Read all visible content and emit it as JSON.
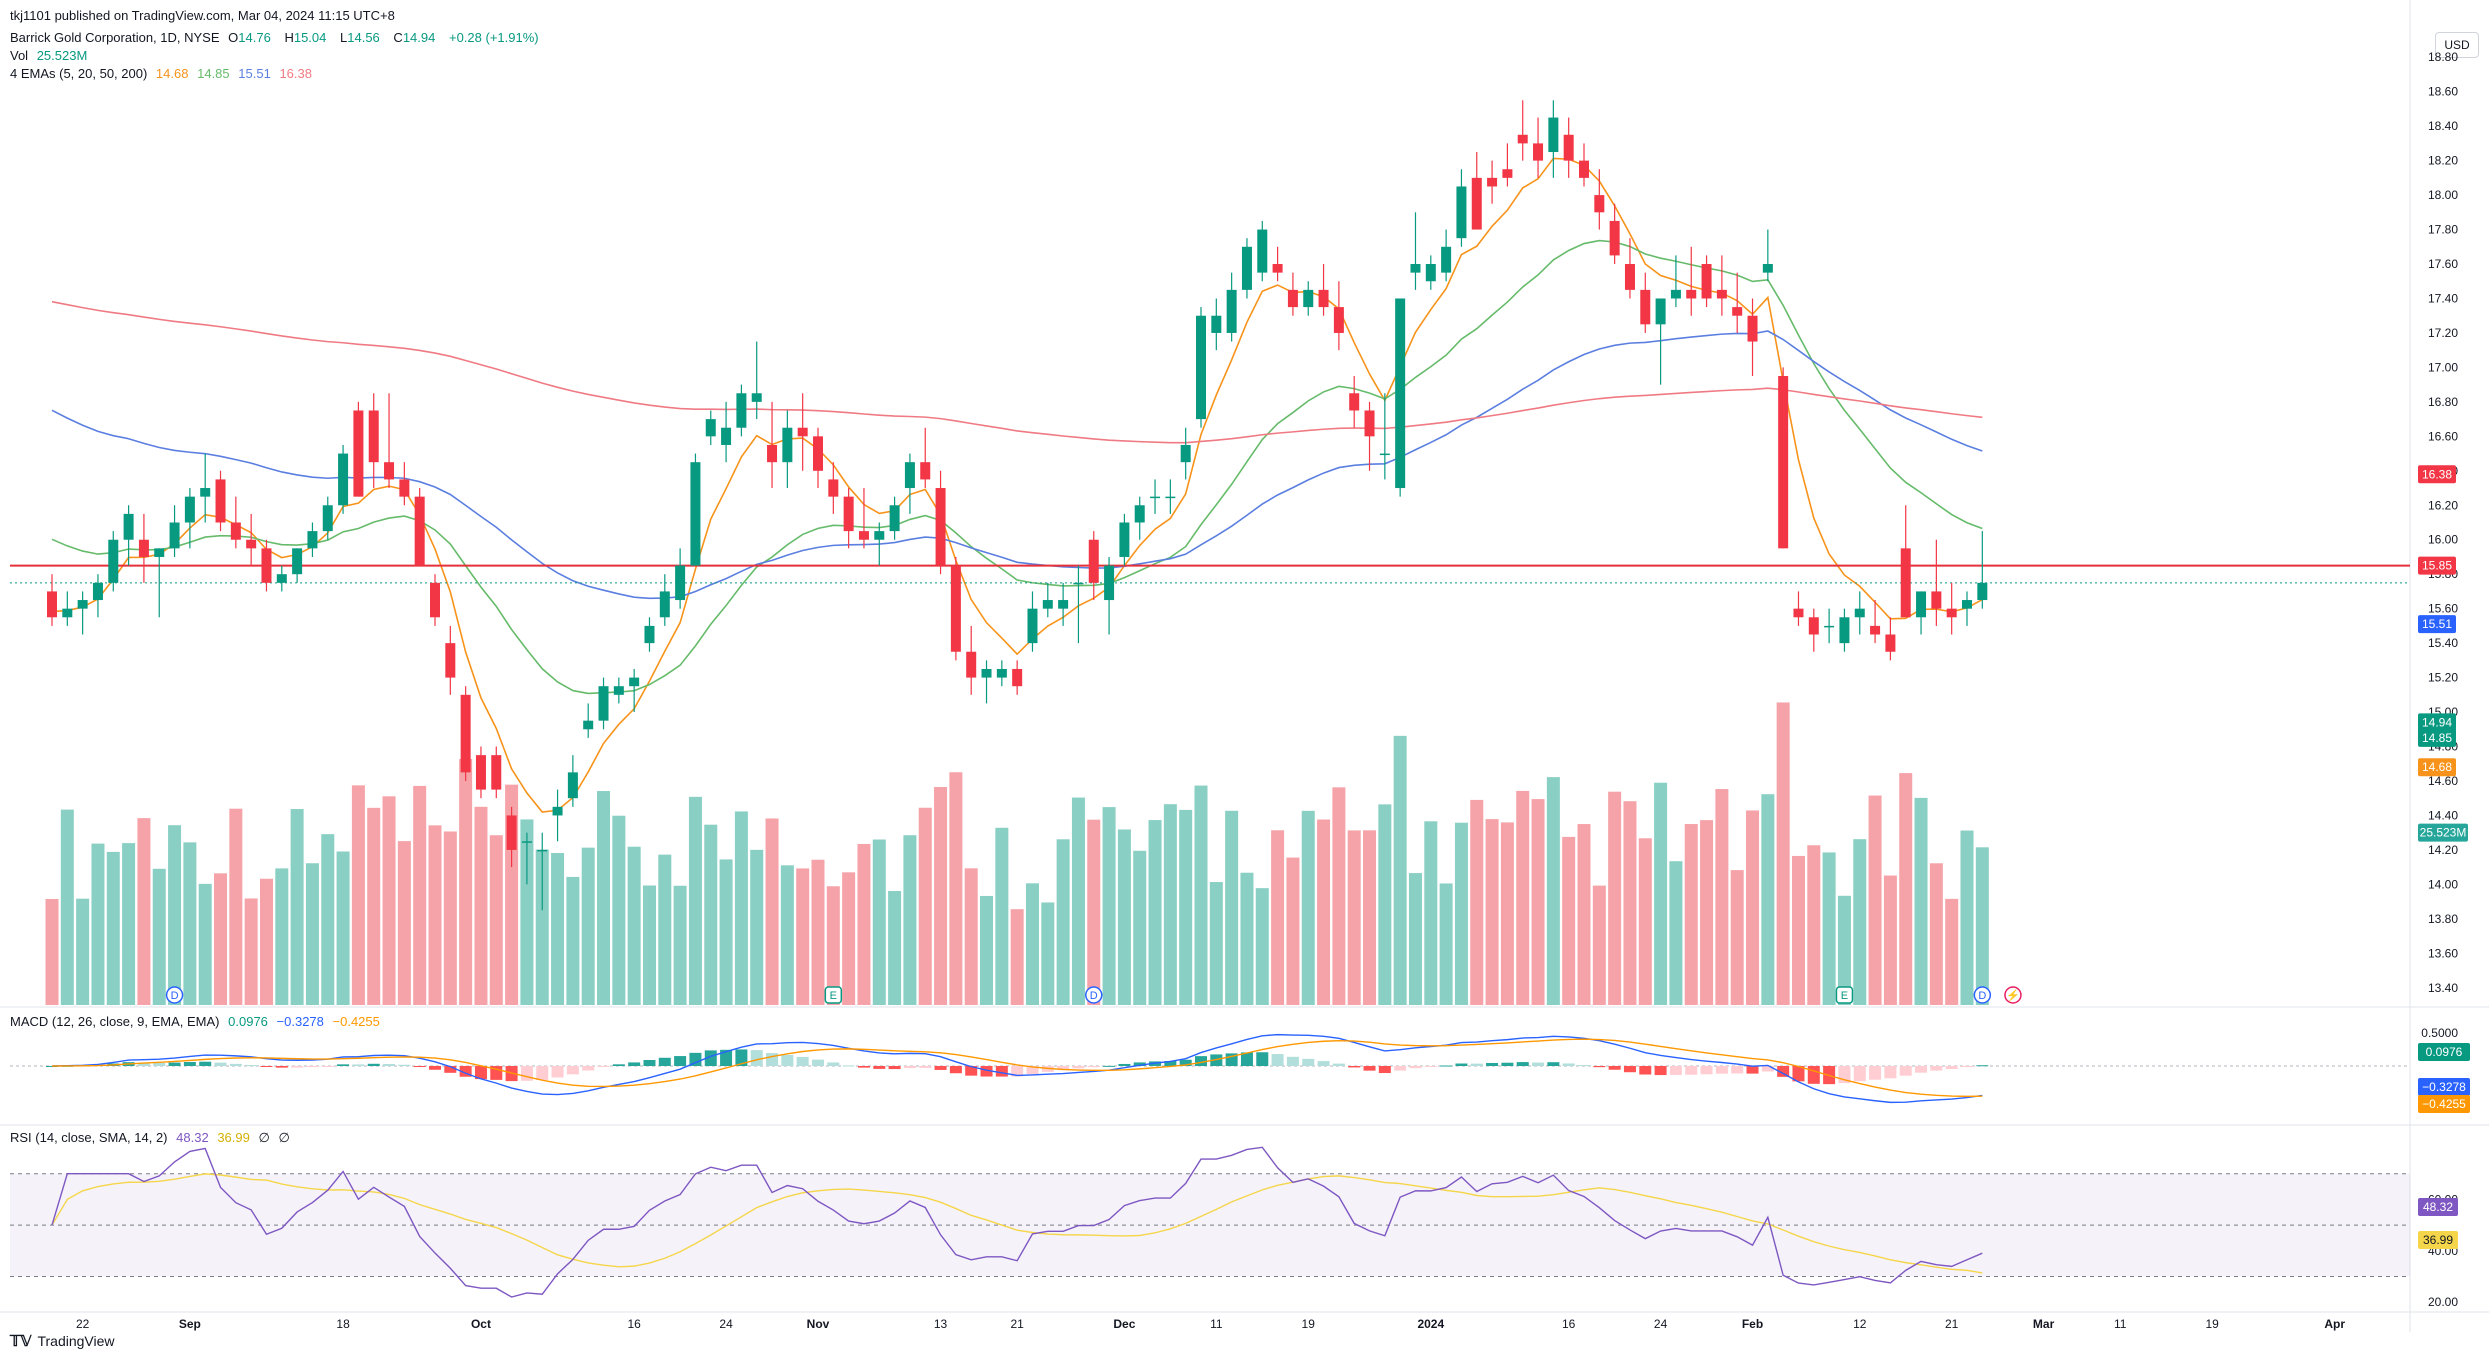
{
  "publisher": "tkj1101 published on TradingView.com, Mar 04, 2024 11:15 UTC+8",
  "header": {
    "symbol": "Barrick Gold Corporation, 1D, NYSE",
    "open_label": "O",
    "open": "14.76",
    "high_label": "H",
    "high": "15.04",
    "low_label": "L",
    "low": "14.56",
    "close_label": "C",
    "close": "14.94",
    "change": "+0.28 (+1.91%)",
    "vol_label": "Vol",
    "vol": "25.523M",
    "ema_label": "4 EMAs (5, 20, 50, 200)",
    "ema_values": [
      "14.68",
      "14.85",
      "15.51",
      "16.38"
    ]
  },
  "currency_button": "USD",
  "footer_brand": "TradingView",
  "colors": {
    "up": "#089981",
    "down": "#f23645",
    "vol_up": "#89cfc4",
    "vol_down": "#f5a3a8",
    "ema5": "#f7931a",
    "ema20": "#66bb6a",
    "ema50": "#5b7fe0",
    "ema200": "#f07a83",
    "hline": "#e5303a",
    "macd": "#2962ff",
    "signal": "#ff9800",
    "rsi": "#7e57c2",
    "rsi_ma": "#f5d64a"
  },
  "price_axis": {
    "ticks": [
      "18.80",
      "18.60",
      "18.40",
      "18.20",
      "18.00",
      "17.80",
      "17.60",
      "17.40",
      "17.20",
      "17.00",
      "16.80",
      "16.60",
      "16.40",
      "16.20",
      "16.00",
      "15.80",
      "15.60",
      "15.40",
      "15.20",
      "15.00",
      "14.80",
      "14.60",
      "14.40",
      "14.20",
      "14.00",
      "13.80",
      "13.60",
      "13.40"
    ],
    "labels": [
      {
        "text": "16.38",
        "price": 16.38,
        "color": "#f23645"
      },
      {
        "text": "15.85",
        "price": 15.85,
        "color": "#f23645"
      },
      {
        "text": "15.51",
        "price": 15.51,
        "color": "#2962ff"
      },
      {
        "text": "14.94",
        "price": 14.94,
        "color": "#089981"
      },
      {
        "text": "14.85",
        "price": 14.85,
        "color": "#089981"
      },
      {
        "text": "14.68",
        "price": 14.68,
        "color": "#f7931a"
      },
      {
        "text": "25.523M",
        "price": 14.3,
        "color": "#26a69a"
      }
    ]
  },
  "time_axis": [
    {
      "label": "22",
      "i": 2
    },
    {
      "label": "Sep",
      "i": 9
    },
    {
      "label": "18",
      "i": 19
    },
    {
      "label": "Oct",
      "i": 28
    },
    {
      "label": "16",
      "i": 38
    },
    {
      "label": "24",
      "i": 44
    },
    {
      "label": "Nov",
      "i": 50
    },
    {
      "label": "13",
      "i": 58
    },
    {
      "label": "21",
      "i": 63
    },
    {
      "label": "Dec",
      "i": 70
    },
    {
      "label": "11",
      "i": 76
    },
    {
      "label": "19",
      "i": 82
    },
    {
      "label": "2024",
      "i": 90
    },
    {
      "label": "16",
      "i": 99
    },
    {
      "label": "24",
      "i": 105
    },
    {
      "label": "Feb",
      "i": 111
    },
    {
      "label": "12",
      "i": 118
    },
    {
      "label": "21",
      "i": 124
    },
    {
      "label": "Mar",
      "i": 130
    },
    {
      "label": "11",
      "i": 135
    },
    {
      "label": "19",
      "i": 141
    },
    {
      "label": "Apr",
      "i": 149
    }
  ],
  "event_markers": [
    {
      "label": "D",
      "i": 8
    },
    {
      "label": "E",
      "i": 51
    },
    {
      "label": "D",
      "i": 68
    },
    {
      "label": "E",
      "i": 117
    },
    {
      "label": "D",
      "i": 126
    },
    {
      "label": "⚡",
      "i": 128
    }
  ],
  "macd": {
    "title": "MACD (12, 26, close, 9, EMA, EMA)",
    "values": [
      "0.0976",
      "−0.3278",
      "−0.4255"
    ],
    "axis_tick": "0.5000",
    "labels": [
      {
        "text": "0.0976",
        "color": "#089981"
      },
      {
        "text": "−0.3278",
        "color": "#2962ff"
      },
      {
        "text": "−0.4255",
        "color": "#ff9800"
      }
    ]
  },
  "rsi": {
    "title": "RSI (14, close, SMA, 14, 2)",
    "values": [
      "48.32",
      "36.99",
      "∅",
      "∅"
    ],
    "axis_ticks": [
      "60.00",
      "40.00",
      "20.00"
    ],
    "labels": [
      {
        "text": "48.32",
        "color": "#7e57c2"
      },
      {
        "text": "36.99",
        "color": "#f5d64a"
      }
    ]
  },
  "chart_data": {
    "type": "candlestick",
    "title": "Barrick Gold Corporation, 1D, NYSE",
    "ylim": [
      13.3,
      18.9
    ],
    "horizontal_line": 15.85,
    "candles": [
      [
        15.7,
        15.8,
        15.5,
        15.55
      ],
      [
        15.55,
        15.7,
        15.5,
        15.6
      ],
      [
        15.6,
        15.7,
        15.45,
        15.65
      ],
      [
        15.65,
        15.8,
        15.55,
        15.75
      ],
      [
        15.75,
        16.05,
        15.7,
        16.0
      ],
      [
        16.0,
        16.2,
        15.85,
        16.15
      ],
      [
        16.0,
        16.15,
        15.75,
        15.9
      ],
      [
        15.9,
        15.95,
        15.55,
        15.95
      ],
      [
        15.95,
        16.2,
        15.9,
        16.1
      ],
      [
        16.1,
        16.3,
        15.95,
        16.25
      ],
      [
        16.25,
        16.5,
        16.1,
        16.3
      ],
      [
        16.35,
        16.4,
        16.05,
        16.1
      ],
      [
        16.1,
        16.25,
        15.95,
        16.0
      ],
      [
        16.0,
        16.15,
        15.85,
        15.95
      ],
      [
        15.95,
        16.0,
        15.7,
        15.75
      ],
      [
        15.75,
        15.85,
        15.7,
        15.8
      ],
      [
        15.8,
        15.95,
        15.75,
        15.95
      ],
      [
        15.95,
        16.1,
        15.9,
        16.05
      ],
      [
        16.05,
        16.25,
        16.0,
        16.2
      ],
      [
        16.2,
        16.55,
        16.15,
        16.5
      ],
      [
        16.75,
        16.8,
        16.25,
        16.25
      ],
      [
        16.75,
        16.85,
        16.3,
        16.45
      ],
      [
        16.45,
        16.85,
        16.3,
        16.35
      ],
      [
        16.35,
        16.45,
        16.2,
        16.25
      ],
      [
        16.25,
        16.3,
        15.85,
        15.85
      ],
      [
        15.75,
        15.8,
        15.5,
        15.55
      ],
      [
        15.4,
        15.5,
        15.1,
        15.2
      ],
      [
        15.1,
        15.15,
        14.6,
        14.65
      ],
      [
        14.75,
        14.8,
        14.5,
        14.55
      ],
      [
        14.75,
        14.8,
        14.5,
        14.55
      ],
      [
        14.4,
        14.45,
        14.1,
        14.2
      ],
      [
        14.25,
        14.3,
        14.0,
        14.25
      ],
      [
        14.2,
        14.3,
        13.85,
        14.2
      ],
      [
        14.4,
        14.55,
        14.25,
        14.45
      ],
      [
        14.5,
        14.75,
        14.45,
        14.65
      ],
      [
        14.9,
        15.05,
        14.85,
        14.95
      ],
      [
        14.95,
        15.2,
        14.9,
        15.15
      ],
      [
        15.1,
        15.2,
        15.05,
        15.15
      ],
      [
        15.15,
        15.25,
        15.0,
        15.2
      ],
      [
        15.4,
        15.55,
        15.35,
        15.5
      ],
      [
        15.55,
        15.8,
        15.5,
        15.7
      ],
      [
        15.65,
        15.95,
        15.6,
        15.85
      ],
      [
        15.85,
        16.5,
        15.85,
        16.45
      ],
      [
        16.6,
        16.75,
        16.55,
        16.7
      ],
      [
        16.55,
        16.8,
        16.45,
        16.65
      ],
      [
        16.65,
        16.9,
        16.6,
        16.85
      ],
      [
        16.8,
        17.15,
        16.7,
        16.85
      ],
      [
        16.55,
        16.8,
        16.3,
        16.45
      ],
      [
        16.45,
        16.75,
        16.3,
        16.65
      ],
      [
        16.65,
        16.85,
        16.4,
        16.6
      ],
      [
        16.6,
        16.65,
        16.3,
        16.4
      ],
      [
        16.35,
        16.45,
        16.15,
        16.25
      ],
      [
        16.25,
        16.3,
        15.95,
        16.05
      ],
      [
        16.05,
        16.3,
        15.95,
        16.0
      ],
      [
        16.0,
        16.1,
        15.85,
        16.05
      ],
      [
        16.05,
        16.25,
        16.0,
        16.2
      ],
      [
        16.3,
        16.5,
        16.15,
        16.45
      ],
      [
        16.45,
        16.65,
        16.3,
        16.35
      ],
      [
        16.3,
        16.4,
        15.8,
        15.85
      ],
      [
        15.85,
        15.9,
        15.3,
        15.35
      ],
      [
        15.35,
        15.5,
        15.1,
        15.2
      ],
      [
        15.2,
        15.3,
        15.05,
        15.25
      ],
      [
        15.2,
        15.3,
        15.15,
        15.25
      ],
      [
        15.25,
        15.3,
        15.1,
        15.15
      ],
      [
        15.4,
        15.7,
        15.35,
        15.6
      ],
      [
        15.6,
        15.75,
        15.55,
        15.65
      ],
      [
        15.6,
        15.75,
        15.5,
        15.65
      ],
      [
        15.75,
        15.85,
        15.4,
        15.75
      ],
      [
        16.0,
        16.05,
        15.65,
        15.75
      ],
      [
        15.65,
        15.9,
        15.45,
        15.85
      ],
      [
        15.9,
        16.15,
        15.85,
        16.1
      ],
      [
        16.1,
        16.25,
        16.0,
        16.2
      ],
      [
        16.25,
        16.35,
        16.15,
        16.25
      ],
      [
        16.25,
        16.35,
        16.15,
        16.25
      ],
      [
        16.45,
        16.65,
        16.35,
        16.55
      ],
      [
        16.7,
        17.35,
        16.65,
        17.3
      ],
      [
        17.2,
        17.4,
        17.1,
        17.3
      ],
      [
        17.2,
        17.55,
        17.15,
        17.45
      ],
      [
        17.45,
        17.75,
        17.4,
        17.7
      ],
      [
        17.55,
        17.85,
        17.5,
        17.8
      ],
      [
        17.6,
        17.7,
        17.5,
        17.55
      ],
      [
        17.45,
        17.55,
        17.3,
        17.35
      ],
      [
        17.35,
        17.5,
        17.3,
        17.45
      ],
      [
        17.45,
        17.6,
        17.3,
        17.35
      ],
      [
        17.35,
        17.5,
        17.1,
        17.2
      ],
      [
        16.85,
        16.95,
        16.65,
        16.75
      ],
      [
        16.75,
        16.8,
        16.4,
        16.6
      ],
      [
        16.5,
        16.85,
        16.35,
        16.5
      ],
      [
        16.3,
        17.4,
        16.25,
        17.4
      ],
      [
        17.55,
        17.9,
        17.45,
        17.6
      ],
      [
        17.5,
        17.65,
        17.45,
        17.6
      ],
      [
        17.55,
        17.8,
        17.5,
        17.7
      ],
      [
        17.75,
        18.15,
        17.7,
        18.05
      ],
      [
        18.1,
        18.25,
        17.8,
        17.8
      ],
      [
        18.1,
        18.2,
        17.95,
        18.05
      ],
      [
        18.15,
        18.3,
        18.05,
        18.1
      ],
      [
        18.35,
        18.55,
        18.2,
        18.3
      ],
      [
        18.3,
        18.45,
        18.1,
        18.2
      ],
      [
        18.25,
        18.55,
        18.1,
        18.45
      ],
      [
        18.35,
        18.45,
        18.1,
        18.2
      ],
      [
        18.2,
        18.3,
        18.05,
        18.1
      ],
      [
        18.0,
        18.15,
        17.8,
        17.9
      ],
      [
        17.85,
        17.95,
        17.6,
        17.65
      ],
      [
        17.6,
        17.75,
        17.4,
        17.45
      ],
      [
        17.45,
        17.55,
        17.2,
        17.25
      ],
      [
        17.25,
        17.35,
        16.9,
        17.4
      ],
      [
        17.4,
        17.65,
        17.35,
        17.45
      ],
      [
        17.45,
        17.7,
        17.3,
        17.4
      ],
      [
        17.6,
        17.65,
        17.35,
        17.4
      ],
      [
        17.45,
        17.65,
        17.3,
        17.4
      ],
      [
        17.35,
        17.55,
        17.2,
        17.3
      ],
      [
        17.3,
        17.4,
        16.95,
        17.15
      ],
      [
        17.55,
        17.8,
        17.5,
        17.6
      ],
      [
        16.95,
        17.0,
        15.95,
        15.95
      ],
      [
        15.6,
        15.7,
        15.5,
        15.55
      ],
      [
        15.55,
        15.6,
        15.35,
        15.45
      ],
      [
        15.5,
        15.6,
        15.4,
        15.5
      ],
      [
        15.4,
        15.6,
        15.35,
        15.55
      ],
      [
        15.55,
        15.7,
        15.45,
        15.6
      ],
      [
        15.5,
        15.65,
        15.4,
        15.45
      ],
      [
        15.45,
        15.55,
        15.3,
        15.35
      ],
      [
        15.95,
        16.2,
        15.55,
        15.55
      ],
      [
        15.55,
        15.7,
        15.45,
        15.7
      ],
      [
        15.7,
        16.0,
        15.5,
        15.6
      ],
      [
        15.6,
        15.75,
        15.45,
        15.55
      ],
      [
        15.6,
        15.7,
        15.5,
        15.65
      ],
      [
        15.65,
        16.05,
        15.6,
        15.75
      ]
    ]
  }
}
